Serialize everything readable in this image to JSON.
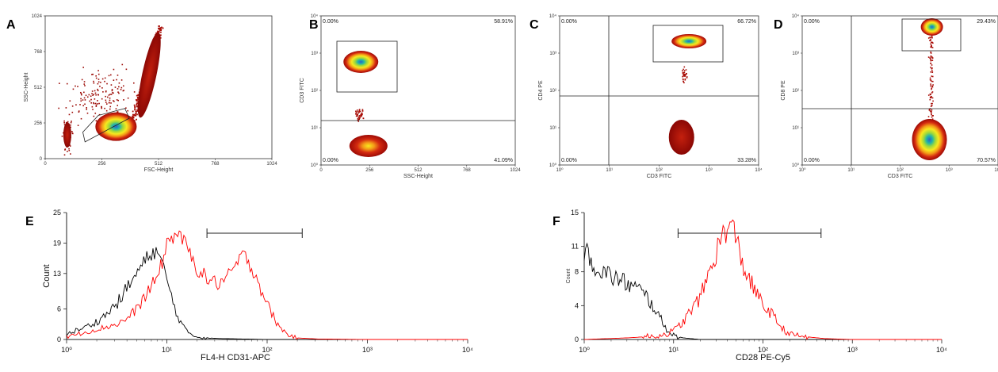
{
  "chart_data": [
    {
      "id": "A",
      "type": "scatter",
      "panel_label": "A",
      "xlabel": "FSC-Height",
      "ylabel": "SSC-Height",
      "x_ticks": [
        "0",
        "256",
        "512",
        "768",
        "1024"
      ],
      "y_ticks": [
        "0",
        "256",
        "512",
        "768",
        "1024"
      ],
      "xlim": [
        0,
        1024
      ],
      "ylim": [
        0,
        1024
      ],
      "populations": [
        {
          "name": "main",
          "cx": 320,
          "cy": 230,
          "rx": 65,
          "ry": 70
        },
        {
          "name": "stream",
          "from": [
            390,
            260
          ],
          "to": [
            520,
            960
          ]
        }
      ],
      "gate": [
        [
          180,
          120
        ],
        [
          380,
          290
        ],
        [
          360,
          360
        ],
        [
          240,
          310
        ],
        [
          170,
          190
        ]
      ]
    },
    {
      "id": "B",
      "type": "scatter",
      "panel_label": "B",
      "xlabel": "SSC-Height",
      "ylabel": "CD3 FITC",
      "x_ticks": [
        "0",
        "256",
        "512",
        "768",
        "1024"
      ],
      "y_ticks": [
        "10⁰",
        "10¹",
        "10²",
        "10³",
        "10⁴"
      ],
      "quadrants": {
        "tl": "0.00%",
        "tr": "58.91%",
        "bl": "0.00%",
        "br": "41.09%"
      },
      "populations": [
        {
          "name": "CD3+",
          "cx": 210,
          "logy": 2.45
        },
        {
          "name": "CD3-",
          "cx": 250,
          "logy": 0.35
        }
      ]
    },
    {
      "id": "C",
      "type": "scatter",
      "panel_label": "C",
      "xlabel": "CD3 FITC",
      "ylabel": "CD4 PE",
      "x_ticks": [
        "10⁰",
        "10¹",
        "10²",
        "10³",
        "10⁴"
      ],
      "y_ticks": [
        "10⁰",
        "10¹",
        "10²",
        "10³",
        "10⁴"
      ],
      "quadrants": {
        "tl": "0.00%",
        "tr": "66.72%",
        "bl": "0.00%",
        "br": "33.28%"
      },
      "populations": [
        {
          "name": "CD4+",
          "logx": 2.6,
          "logy": 3.1
        },
        {
          "name": "CD4-",
          "logx": 2.45,
          "logy": 0.6
        }
      ]
    },
    {
      "id": "D",
      "type": "scatter",
      "panel_label": "D",
      "xlabel": "CD3 FITC",
      "ylabel": "CD8 PE",
      "x_ticks": [
        "10⁰",
        "10¹",
        "10²",
        "10³",
        "10⁴"
      ],
      "y_ticks": [
        "10⁰",
        "10¹",
        "10²",
        "10³",
        "10⁴"
      ],
      "quadrants": {
        "tl": "0.00%",
        "tr": "29.43%",
        "bl": "0.00%",
        "br": "70.57%"
      },
      "populations": [
        {
          "name": "CD8+",
          "logx": 2.65,
          "logy": 3.55
        },
        {
          "name": "CD8-",
          "logx": 2.6,
          "logy": 0.5
        }
      ]
    },
    {
      "id": "E",
      "type": "line",
      "panel_label": "E",
      "xlabel": "FL4-H CD31-APC",
      "ylabel": "Count",
      "x_ticks": [
        "10⁰",
        "10¹",
        "10²",
        "10³",
        "10⁴"
      ],
      "y_ticks": [
        "0",
        "6",
        "13",
        "19",
        "25"
      ],
      "xlim_log10": [
        0,
        4
      ],
      "ylim": [
        0,
        25
      ],
      "marker_range_log10": [
        1.4,
        2.35
      ],
      "series": [
        {
          "color": "#000000",
          "x_log10": [
            0.0,
            0.1,
            0.2,
            0.3,
            0.4,
            0.5,
            0.6,
            0.7,
            0.75,
            0.8,
            0.85,
            0.9,
            0.95,
            1.0,
            1.05,
            1.1,
            1.15,
            1.2,
            1.3,
            1.5,
            2.0,
            3.0,
            4.0
          ],
          "y": [
            1,
            1.8,
            2.5,
            3.5,
            5,
            7,
            10,
            13,
            14.5,
            16,
            17,
            17.5,
            15,
            12,
            8,
            5,
            3,
            1.5,
            0.5,
            0.2,
            0,
            0,
            0
          ]
        },
        {
          "color": "#ff0000",
          "x_log10": [
            0.0,
            0.1,
            0.2,
            0.3,
            0.4,
            0.5,
            0.6,
            0.7,
            0.8,
            0.9,
            0.95,
            1.0,
            1.05,
            1.1,
            1.15,
            1.2,
            1.3,
            1.4,
            1.5,
            1.6,
            1.7,
            1.75,
            1.8,
            1.9,
            2.0,
            2.1,
            2.2,
            2.3,
            2.5,
            3.0,
            4.0
          ],
          "y": [
            0.5,
            1,
            1.5,
            2,
            2.5,
            3,
            4,
            6,
            9,
            12,
            15,
            19,
            20,
            21,
            20,
            18,
            14,
            12,
            11,
            12,
            15,
            16.5,
            16,
            12,
            7,
            3,
            1,
            0.3,
            0.1,
            0,
            0
          ]
        }
      ]
    },
    {
      "id": "F",
      "type": "line",
      "panel_label": "F",
      "xlabel": "CD28 PE-Cy5",
      "ylabel": "Count",
      "x_ticks": [
        "10⁰",
        "10¹",
        "10²",
        "10³",
        "10⁴"
      ],
      "y_ticks": [
        "0",
        "4",
        "8",
        "11",
        "15"
      ],
      "xlim_log10": [
        0,
        4
      ],
      "ylim": [
        0,
        15
      ],
      "marker_range_log10": [
        1.05,
        2.65
      ],
      "series": [
        {
          "color": "#000000",
          "x_log10": [
            0.0,
            0.05,
            0.1,
            0.2,
            0.3,
            0.4,
            0.5,
            0.6,
            0.7,
            0.8,
            0.85,
            0.9,
            1.0,
            1.1,
            1.3,
            2.0,
            4.0
          ],
          "y": [
            9,
            10.5,
            9,
            8,
            7.5,
            7,
            6.5,
            6,
            5,
            3.5,
            2.5,
            1.5,
            0.5,
            0.2,
            0,
            0,
            0
          ]
        },
        {
          "color": "#ff0000",
          "x_log10": [
            0.0,
            0.5,
            0.8,
            0.9,
            1.0,
            1.1,
            1.2,
            1.3,
            1.4,
            1.5,
            1.55,
            1.6,
            1.65,
            1.7,
            1.75,
            1.8,
            1.9,
            2.0,
            2.1,
            2.2,
            2.3,
            2.5,
            2.7,
            3.0,
            4.0
          ],
          "y": [
            0,
            0.2,
            0.4,
            0.6,
            1,
            2,
            3.5,
            5,
            8,
            11,
            12.5,
            13,
            13.5,
            12,
            10,
            8,
            6,
            4,
            3,
            1.5,
            0.6,
            0.3,
            0.1,
            0,
            0
          ]
        }
      ]
    }
  ]
}
